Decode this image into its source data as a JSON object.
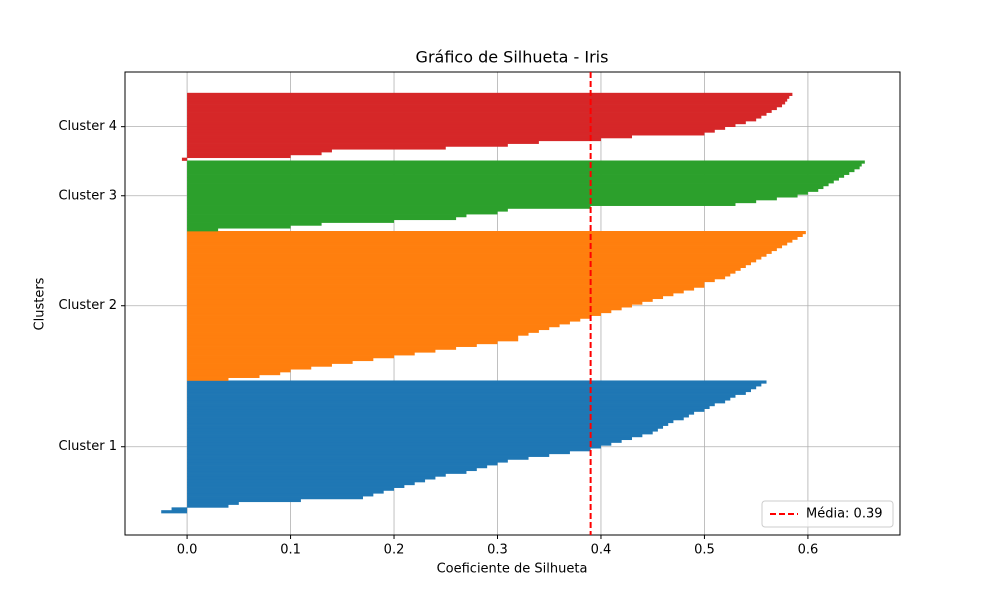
{
  "chart_data": {
    "type": "silhouette",
    "title": "Gráfico de Silhueta - Iris",
    "xlabel": "Coeficiente de Silhueta",
    "ylabel": "Clusters",
    "xlim": [
      -0.06,
      0.689
    ],
    "xticks": [
      {
        "value": 0,
        "label": "0.0"
      },
      0.1,
      0.2,
      0.3,
      0.4,
      0.5,
      0.6
    ],
    "grid": true,
    "legend_position": "lower right",
    "mean_line": {
      "value": 0.39,
      "label": "Média: 0.39",
      "color": "#ff0000"
    },
    "series": [
      {
        "name": "Cluster 1",
        "color": "#1f77b4",
        "values": [
          -0.025,
          -0.015,
          0.04,
          0.05,
          0.11,
          0.17,
          0.18,
          0.19,
          0.2,
          0.21,
          0.22,
          0.23,
          0.24,
          0.25,
          0.27,
          0.28,
          0.29,
          0.3,
          0.31,
          0.33,
          0.35,
          0.37,
          0.39,
          0.4,
          0.41,
          0.42,
          0.43,
          0.44,
          0.45,
          0.455,
          0.46,
          0.465,
          0.47,
          0.48,
          0.485,
          0.49,
          0.5,
          0.505,
          0.51,
          0.52,
          0.525,
          0.53,
          0.54,
          0.545,
          0.55,
          0.555,
          0.56
        ]
      },
      {
        "name": "Cluster 2",
        "color": "#ff7f0e",
        "values": [
          0.04,
          0.07,
          0.09,
          0.1,
          0.12,
          0.14,
          0.16,
          0.18,
          0.2,
          0.22,
          0.24,
          0.26,
          0.28,
          0.3,
          0.32,
          0.32,
          0.33,
          0.34,
          0.35,
          0.36,
          0.37,
          0.38,
          0.39,
          0.4,
          0.41,
          0.42,
          0.43,
          0.44,
          0.45,
          0.46,
          0.47,
          0.48,
          0.49,
          0.5,
          0.5,
          0.51,
          0.52,
          0.525,
          0.53,
          0.535,
          0.54,
          0.545,
          0.55,
          0.555,
          0.56,
          0.565,
          0.57,
          0.575,
          0.58,
          0.585,
          0.59,
          0.595,
          0.598
        ]
      },
      {
        "name": "Cluster 3",
        "color": "#2ca02c",
        "values": [
          0.03,
          0.1,
          0.13,
          0.2,
          0.26,
          0.27,
          0.3,
          0.31,
          0.39,
          0.53,
          0.55,
          0.57,
          0.59,
          0.6,
          0.61,
          0.615,
          0.62,
          0.625,
          0.63,
          0.635,
          0.64,
          0.645,
          0.65,
          0.652,
          0.655
        ]
      },
      {
        "name": "Cluster 4",
        "color": "#d62728",
        "values": [
          -0.005,
          0.1,
          0.13,
          0.14,
          0.25,
          0.31,
          0.34,
          0.4,
          0.43,
          0.5,
          0.51,
          0.52,
          0.53,
          0.54,
          0.55,
          0.555,
          0.56,
          0.565,
          0.57,
          0.575,
          0.578,
          0.58,
          0.582,
          0.585
        ]
      }
    ]
  }
}
